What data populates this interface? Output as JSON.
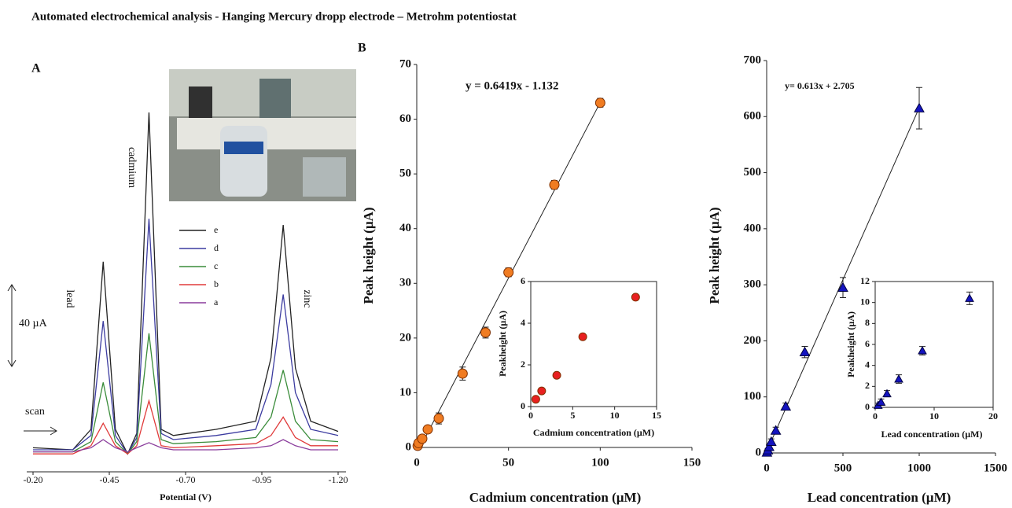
{
  "title": "Automated electrochemical analysis - Hanging Mercury dropp electrode – Metrohm potentiostat",
  "chart_data": [
    {
      "type": "line",
      "panel": "A",
      "xlabel": "Potential (V)",
      "x": [
        -0.2,
        -0.33,
        -0.39,
        -0.43,
        -0.47,
        -0.51,
        -0.54,
        -0.58,
        -0.62,
        -0.66,
        -0.8,
        -0.93,
        -0.98,
        -1.02,
        -1.06,
        -1.11,
        -1.2
      ],
      "xlim": [
        -0.2,
        -1.2
      ],
      "xticks": [
        {
          "value": -0.2,
          "label": "-0.20"
        },
        {
          "value": -0.45,
          "label": "-0.45"
        },
        {
          "value": -0.7,
          "label": "-0.70"
        },
        {
          "value": -0.95,
          "label": "-0.95"
        },
        {
          "value": -1.2,
          "label": "-1.20"
        }
      ],
      "scale_bar": {
        "value": 40,
        "label": "40 µA"
      },
      "annotations": [
        "lead",
        "cadmium",
        "zinc",
        "scan"
      ],
      "series": [
        {
          "name": "e",
          "color": "#222222",
          "values": [
            1,
            0,
            10,
            92,
            10,
            -2,
            8,
            165,
            10,
            7,
            10,
            14,
            45,
            110,
            40,
            14,
            9
          ]
        },
        {
          "name": "d",
          "color": "#3c3ca0",
          "values": [
            0,
            0,
            7,
            63,
            7,
            -2,
            6,
            113,
            8,
            5,
            7,
            10,
            32,
            76,
            28,
            10,
            7
          ]
        },
        {
          "name": "c",
          "color": "#3a8c3a",
          "values": [
            -1,
            -1,
            4,
            33,
            4,
            -2,
            4,
            57,
            5,
            3,
            4,
            6,
            16,
            39,
            14,
            5,
            4
          ]
        },
        {
          "name": "b",
          "color": "#e03a3a",
          "values": [
            -2,
            -2,
            2,
            13,
            2,
            -2,
            2,
            24,
            2,
            1,
            2,
            3,
            7,
            16,
            6,
            2,
            2
          ]
        },
        {
          "name": "a",
          "color": "#8a3c9c",
          "values": [
            -1,
            -1,
            1,
            5,
            1,
            -1,
            1,
            3.5,
            1,
            0,
            0,
            1,
            2,
            5,
            2,
            0,
            0
          ]
        }
      ]
    },
    {
      "type": "scatter",
      "panel": "B",
      "xlabel": "Cadmium concentration (µM)",
      "ylabel": "Peak height (µA)",
      "x": [
        0.5,
        1,
        3,
        6,
        12,
        25,
        37.5,
        50,
        75,
        100
      ],
      "values": [
        0.3,
        0.8,
        1.6,
        3.3,
        5.3,
        13.5,
        21,
        32,
        48,
        63
      ],
      "errors": [
        0.4,
        0.4,
        0.5,
        0.6,
        1,
        1.2,
        1,
        0.8,
        0.8,
        0.8
      ],
      "color": "#f07c22",
      "marker": "circle",
      "xlim": [
        0,
        150
      ],
      "xticks": [
        0,
        50,
        100,
        150
      ],
      "ylim": [
        0,
        70
      ],
      "yticks": [
        0,
        10,
        20,
        30,
        40,
        50,
        60,
        70
      ],
      "trendline": {
        "slope": 0.6419,
        "intercept": -1.132,
        "label": "y = 0.6419x - 1.132"
      },
      "inset": {
        "type": "scatter",
        "xlabel": "Cadmium concentration (µM)",
        "ylabel": "Peakheight (µA)",
        "x": [
          0.6,
          1.3,
          3.1,
          6.2,
          12.5
        ],
        "values": [
          0.35,
          0.75,
          1.5,
          3.35,
          5.25
        ],
        "color": "#e82020",
        "marker": "circle",
        "xlim": [
          0,
          15
        ],
        "xticks": [
          0,
          5,
          10,
          15
        ],
        "ylim": [
          0,
          6
        ],
        "yticks": [
          0,
          2,
          4,
          6
        ]
      }
    },
    {
      "type": "scatter",
      "xlabel": "Lead concentration (µM)",
      "ylabel": "Peak height (µA)",
      "x": [
        2,
        8,
        16,
        30,
        60,
        125,
        250,
        500,
        1000
      ],
      "values": [
        1,
        5,
        11,
        20,
        40,
        83,
        180,
        295,
        615
      ],
      "errors": [
        2,
        3,
        4,
        5,
        6,
        6,
        10,
        18,
        37
      ],
      "color": "#1414c0",
      "marker": "triangle",
      "xlim": [
        0,
        1500
      ],
      "xticks": [
        0,
        500,
        1000,
        1500
      ],
      "ylim": [
        0,
        700
      ],
      "yticks": [
        0,
        100,
        200,
        300,
        400,
        500,
        600,
        700
      ],
      "trendline": {
        "slope": 0.613,
        "intercept": 2.705,
        "label": "y= 0.613x + 2.705"
      },
      "inset": {
        "type": "scatter",
        "xlabel": "Lead concentration (µM)",
        "ylabel": "Peakheight (µA)",
        "x": [
          0.5,
          1,
          2,
          4,
          8,
          16
        ],
        "values": [
          0.2,
          0.5,
          1.3,
          2.7,
          5.4,
          10.4
        ],
        "errors": [
          0.2,
          0.3,
          0.3,
          0.4,
          0.4,
          0.6
        ],
        "color": "#1414c0",
        "marker": "triangle",
        "xlim": [
          0,
          20
        ],
        "xticks": [
          0,
          10,
          20
        ],
        "ylim": [
          0,
          12
        ],
        "yticks": [
          0,
          2,
          4,
          6,
          8,
          10,
          12
        ]
      }
    }
  ]
}
